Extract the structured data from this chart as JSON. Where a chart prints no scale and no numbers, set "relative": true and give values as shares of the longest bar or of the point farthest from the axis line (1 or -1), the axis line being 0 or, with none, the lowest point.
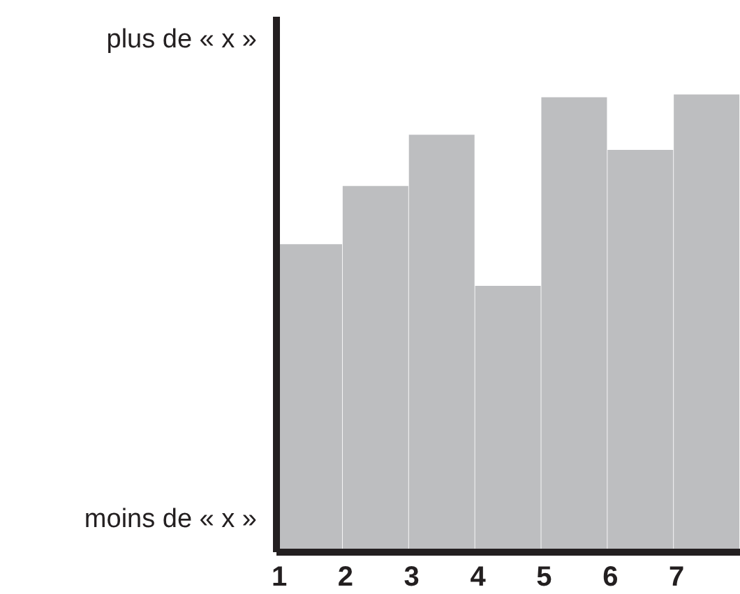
{
  "chart_data": {
    "type": "bar",
    "relative": true,
    "categories": [
      "1",
      "2",
      "3",
      "4",
      "5",
      "6",
      "7"
    ],
    "values": [
      0.673,
      0.8,
      0.912,
      0.582,
      0.994,
      0.879,
      1
    ],
    "color": "#bdbec0",
    "annotations": [
      "plus de « x »",
      "moins de « x »"
    ]
  }
}
